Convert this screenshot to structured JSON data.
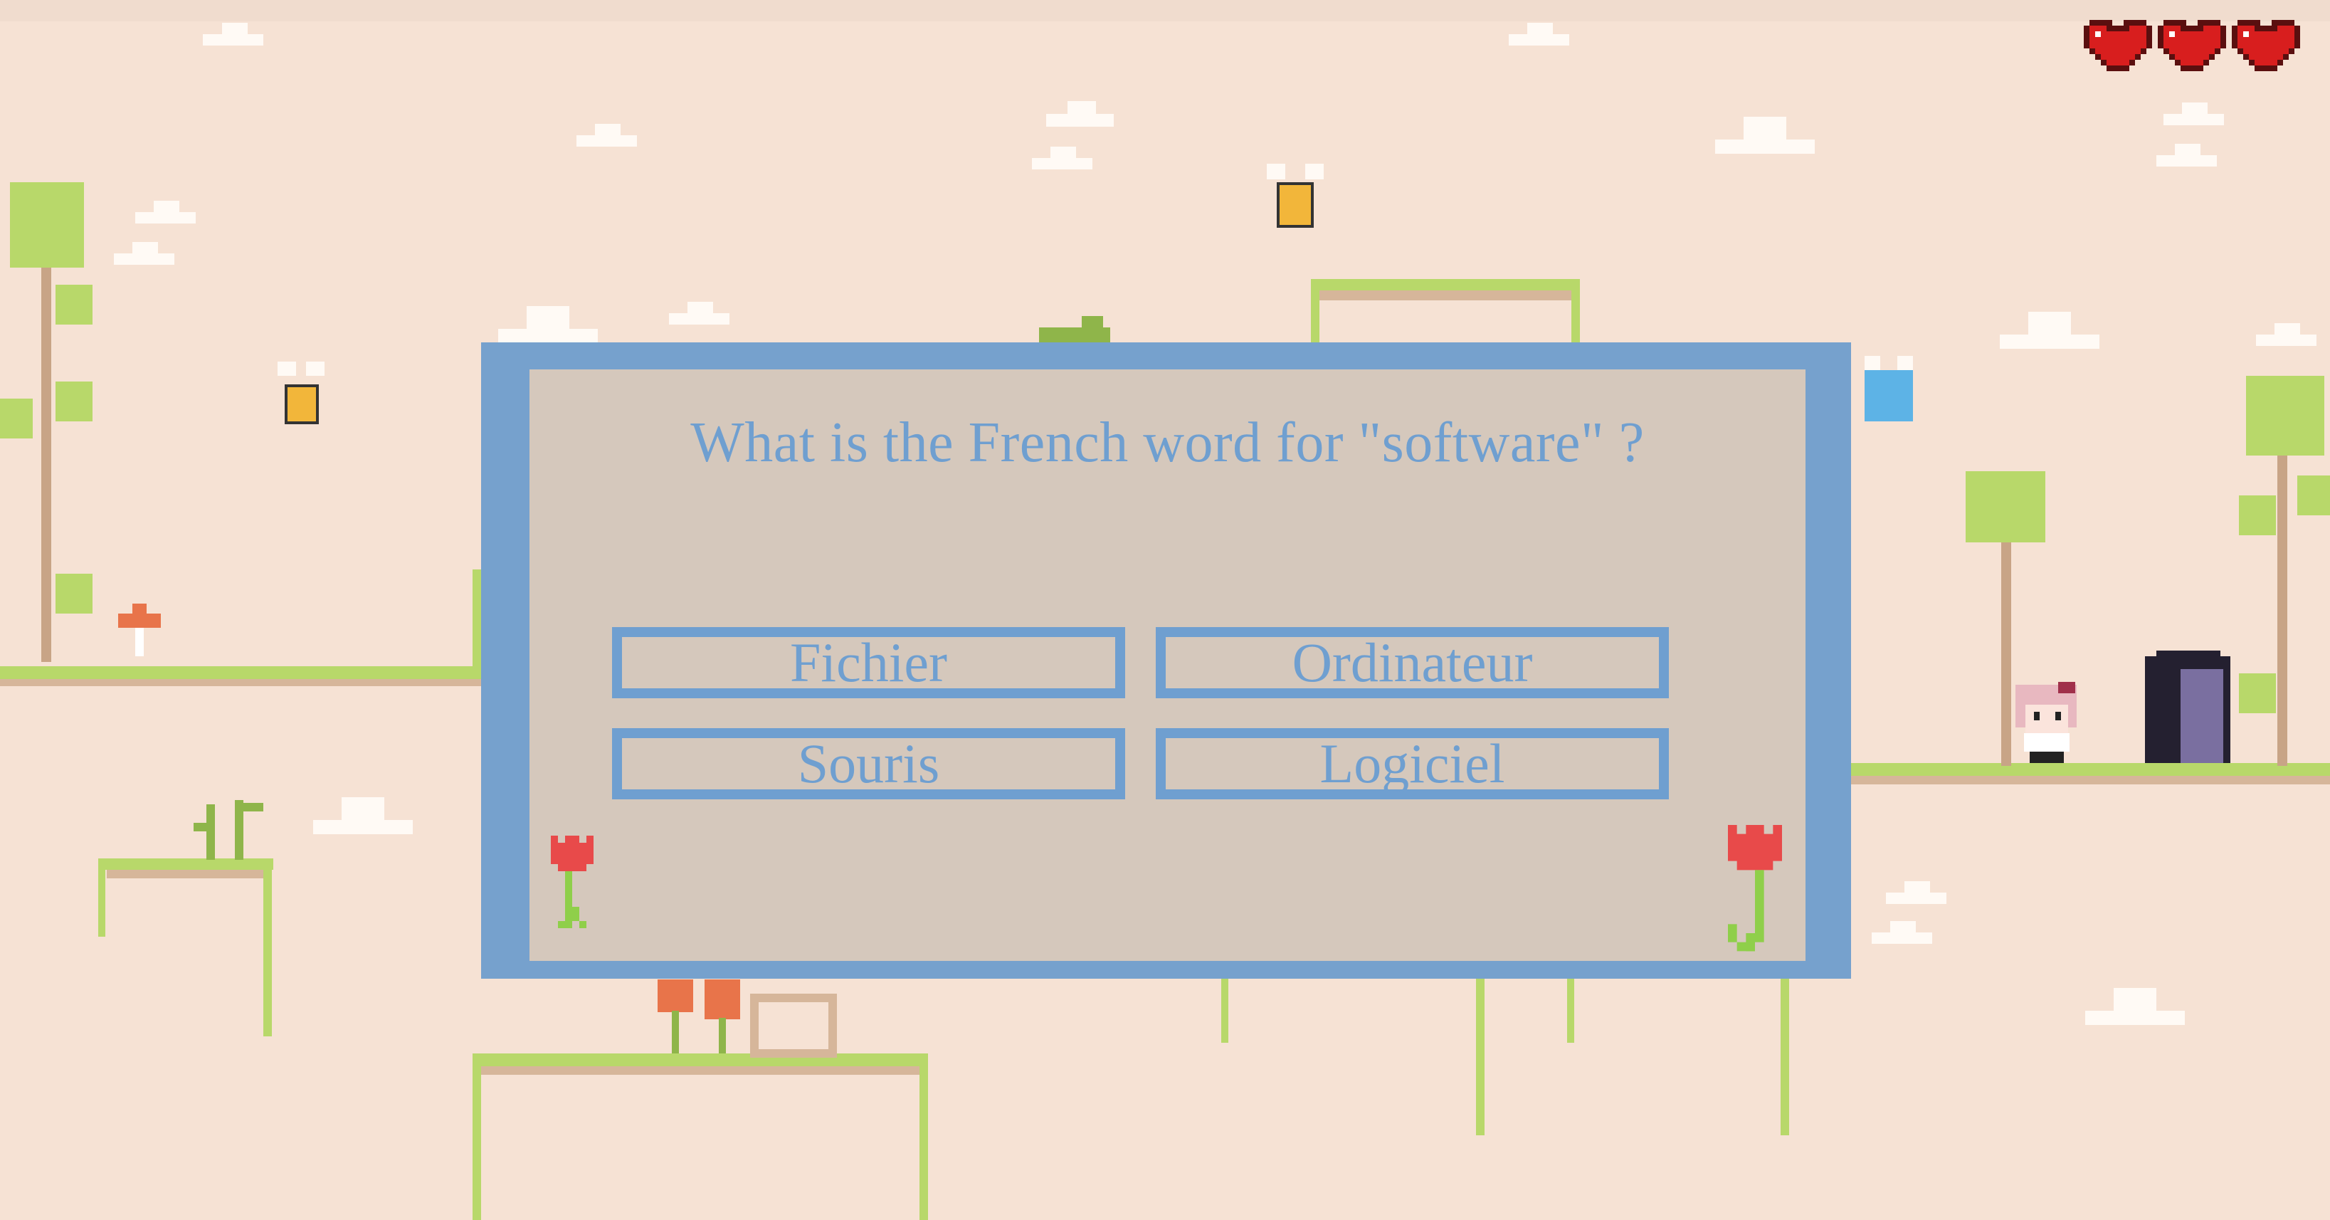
{
  "game": {
    "lives": 3,
    "hearts": [
      "heart-icon",
      "heart-icon",
      "heart-icon"
    ],
    "colors": {
      "background": "#f6e2d4",
      "frame": "#76a1cd",
      "panel": "#d5c8bc",
      "text": "#6f9fd0",
      "grass": "#b8d86a",
      "heart": "#d81e1e"
    }
  },
  "quiz": {
    "question": "What is the French word for \"software\" ?",
    "answers": [
      "Fichier",
      "Ordinateur",
      "Souris",
      "Logiciel"
    ]
  }
}
